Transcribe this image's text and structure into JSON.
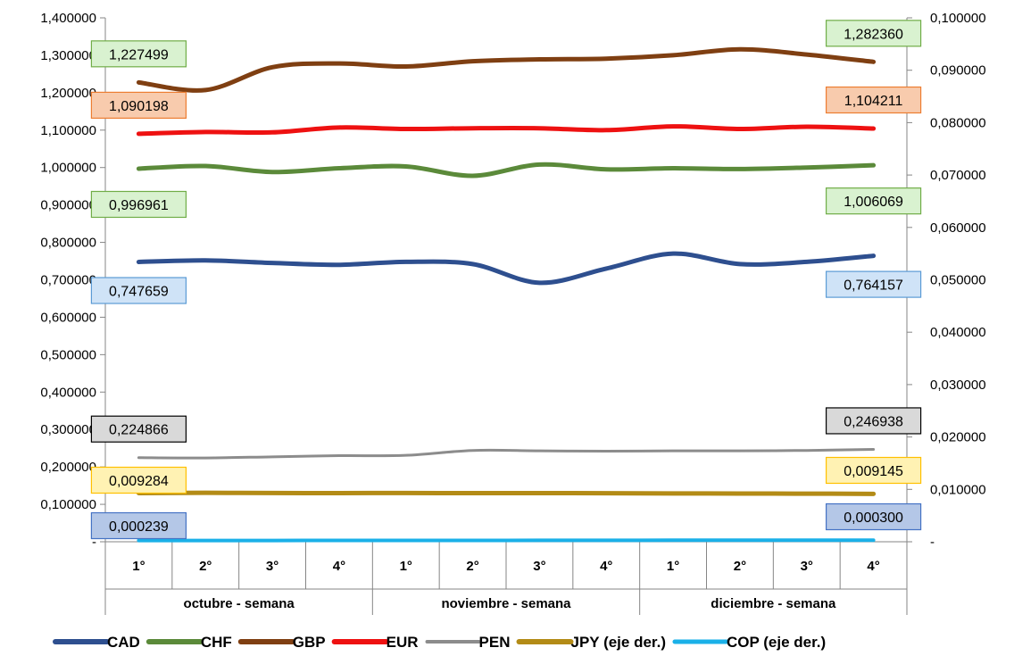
{
  "chart_data": {
    "type": "line",
    "title": "",
    "y_left": {
      "min": 0,
      "max": 1.4,
      "step": 0.1,
      "tick_labels": [
        "-",
        "0,100000",
        "0,200000",
        "0,300000",
        "0,400000",
        "0,500000",
        "0,600000",
        "0,700000",
        "0,800000",
        "0,900000",
        "1,000000",
        "1,100000",
        "1,200000",
        "1,300000",
        "1,400000"
      ]
    },
    "y_right": {
      "min": 0,
      "max": 0.1,
      "step": 0.01,
      "tick_labels": [
        "-",
        "0,010000",
        "0,020000",
        "0,030000",
        "0,040000",
        "0,050000",
        "0,060000",
        "0,070000",
        "0,080000",
        "0,090000",
        "0,100000"
      ]
    },
    "categories": [
      "1°",
      "2°",
      "3°",
      "4°",
      "1°",
      "2°",
      "3°",
      "4°",
      "1°",
      "2°",
      "3°",
      "4°"
    ],
    "groups": [
      {
        "label": "octubre - semana",
        "count": 4
      },
      {
        "label": "noviembre - semana",
        "count": 4
      },
      {
        "label": "diciembre - semana",
        "count": 4
      }
    ],
    "grid": false,
    "legend_position": "bottom",
    "series": [
      {
        "name": "CAD",
        "axis": "left",
        "color": "#2e4f8f",
        "width": 5,
        "values": [
          0.747659,
          0.752,
          0.745,
          0.74,
          0.748,
          0.742,
          0.692,
          0.73,
          0.77,
          0.742,
          0.748,
          0.764157
        ],
        "labels": [
          {
            "index": 0,
            "text": "0,747659",
            "fill": "#cfe3f7",
            "stroke": "#5b9bd5"
          },
          {
            "index": 11,
            "text": "0,764157",
            "fill": "#cfe3f7",
            "stroke": "#5b9bd5"
          }
        ]
      },
      {
        "name": "CHF",
        "axis": "left",
        "color": "#5b8a3a",
        "width": 5,
        "values": [
          0.996961,
          1.004,
          0.988,
          0.998,
          1.003,
          0.978,
          1.008,
          0.995,
          0.998,
          0.996,
          1.0,
          1.006069
        ],
        "labels": [
          {
            "index": 0,
            "text": "0,996961",
            "fill": "#d9f2d0",
            "stroke": "#70ad47"
          },
          {
            "index": 11,
            "text": "1,006069",
            "fill": "#d9f2d0",
            "stroke": "#70ad47"
          }
        ]
      },
      {
        "name": "GBP",
        "axis": "left",
        "color": "#7f3f12",
        "width": 5,
        "values": [
          1.227499,
          1.207,
          1.268,
          1.278,
          1.27,
          1.284,
          1.289,
          1.291,
          1.3,
          1.316,
          1.302,
          1.28236
        ],
        "labels": [
          {
            "index": 0,
            "text": "1,227499",
            "fill": "#d9f2d0",
            "stroke": "#70ad47"
          },
          {
            "index": 11,
            "text": "1,282360",
            "fill": "#d9f2d0",
            "stroke": "#70ad47"
          }
        ]
      },
      {
        "name": "EUR",
        "axis": "left",
        "color": "#ee1111",
        "width": 5,
        "values": [
          1.090198,
          1.095,
          1.094,
          1.107,
          1.103,
          1.105,
          1.105,
          1.1,
          1.11,
          1.103,
          1.109,
          1.104211
        ],
        "labels": [
          {
            "index": 0,
            "text": "1,090198",
            "fill": "#f8cbad",
            "stroke": "#ed7d31"
          },
          {
            "index": 11,
            "text": "1,104211",
            "fill": "#f8cbad",
            "stroke": "#ed7d31"
          }
        ]
      },
      {
        "name": "PEN",
        "axis": "left",
        "color": "#8c8c8c",
        "width": 3,
        "values": [
          0.224866,
          0.224,
          0.227,
          0.23,
          0.231,
          0.244,
          0.243,
          0.242,
          0.243,
          0.243,
          0.244,
          0.246938
        ],
        "labels": [
          {
            "index": 0,
            "text": "0,224866",
            "fill": "#d9d9d9",
            "stroke": "#000000"
          },
          {
            "index": 11,
            "text": "0,246938",
            "fill": "#d9d9d9",
            "stroke": "#000000"
          }
        ]
      },
      {
        "name": "JPY (eje der.)",
        "axis": "right",
        "color": "#b38b16",
        "width": 5,
        "values": [
          0.009284,
          0.00935,
          0.0093,
          0.00929,
          0.0093,
          0.00928,
          0.00928,
          0.00927,
          0.00922,
          0.00921,
          0.00918,
          0.009145
        ],
        "labels": [
          {
            "index": 0,
            "text": "0,009284",
            "fill": "#fff2b3",
            "stroke": "#ffc000"
          },
          {
            "index": 11,
            "text": "0,009145",
            "fill": "#fff2b3",
            "stroke": "#ffc000"
          }
        ]
      },
      {
        "name": "COP (eje der.)",
        "axis": "right",
        "color": "#1ab0e8",
        "width": 4,
        "values": [
          0.000239,
          0.00024,
          0.00024,
          0.00025,
          0.00025,
          0.00026,
          0.00027,
          0.00028,
          0.00029,
          0.00029,
          0.0003,
          0.0003
        ],
        "labels": [
          {
            "index": 0,
            "text": "0,000239",
            "fill": "#b4c7e7",
            "stroke": "#4472c4"
          },
          {
            "index": 11,
            "text": "0,000300",
            "fill": "#b4c7e7",
            "stroke": "#4472c4"
          }
        ]
      }
    ]
  }
}
